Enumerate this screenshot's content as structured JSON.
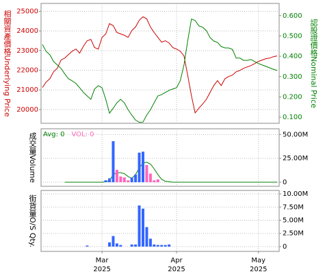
{
  "chart_data": [
    {
      "type": "line",
      "ylabel": "相關資產價格Underlying Price",
      "y2label": "認股證價格Nominal Price",
      "ylim": [
        19300,
        25400
      ],
      "yticks": [
        20000,
        21000,
        22000,
        23000,
        24000,
        25000
      ],
      "y2lim": [
        0.07,
        0.66
      ],
      "y2ticks": [
        {
          "value": 0.1,
          "label": "0.100"
        },
        {
          "value": 0.2,
          "label": "0.200"
        },
        {
          "value": 0.3,
          "label": "0.300"
        },
        {
          "value": 0.4,
          "label": "0.400"
        },
        {
          "value": 0.5,
          "label": "0.500"
        },
        {
          "value": 0.6,
          "label": "0.600"
        }
      ],
      "grid": true,
      "series": [
        {
          "color": "#cc0000",
          "values": [
            21120,
            21400,
            21570,
            21920,
            22100,
            22520,
            22620,
            22800,
            22970,
            23080,
            22870,
            23220,
            23500,
            23570,
            23150,
            23080,
            23670,
            23850,
            24370,
            24270,
            23920,
            23850,
            23780,
            23670,
            24020,
            24200,
            24550,
            24720,
            24620,
            24200,
            23920,
            23670,
            23430,
            23500,
            23390,
            23150,
            23080,
            22970,
            22730,
            21750,
            20700,
            19830,
            20070,
            20280,
            20520,
            20870,
            21220,
            21470,
            21220,
            21570,
            21680,
            21750,
            21920,
            21990,
            22100,
            22170,
            22240,
            22340,
            22450,
            22520,
            22590,
            22620,
            22690,
            22730
          ]
        },
        {
          "color": "#008000",
          "axis": "y2",
          "values": [
            0.458,
            0.424,
            0.407,
            0.374,
            0.357,
            0.34,
            0.313,
            0.289,
            0.279,
            0.266,
            0.245,
            0.222,
            0.205,
            0.188,
            0.239,
            0.255,
            0.245,
            0.188,
            0.12,
            0.144,
            0.171,
            0.188,
            0.171,
            0.137,
            0.11,
            0.086,
            0.075,
            0.076,
            0.11,
            0.137,
            0.171,
            0.205,
            0.211,
            0.222,
            0.232,
            0.239,
            0.245,
            0.279,
            0.357,
            0.475,
            0.583,
            0.576,
            0.549,
            0.543,
            0.526,
            0.492,
            0.475,
            0.468,
            0.448,
            0.441,
            0.441,
            0.434,
            0.391,
            0.391,
            0.38,
            0.38,
            0.384,
            0.374,
            0.364,
            0.357,
            0.35,
            0.343,
            0.336,
            0.33
          ]
        }
      ]
    },
    {
      "type": "bar",
      "ylabel": "成交量Volume",
      "ylim": [
        -4300000,
        56000000
      ],
      "yticks": [
        0,
        {
          "value": 25000000,
          "label": "25.00M"
        },
        {
          "value": 50000000,
          "label": "50.00M"
        }
      ],
      "grid": true,
      "series": [
        {
          "name": "Avg: 0",
          "color": "#008000",
          "type": "line",
          "values": [
            null,
            null,
            null,
            null,
            null,
            null,
            0,
            0,
            0,
            0,
            0,
            0,
            0,
            0,
            0,
            0,
            0,
            500000,
            1500000,
            8000000,
            10000000,
            10000000,
            9000000,
            6000000,
            4000000,
            8000000,
            15000000,
            20000000,
            21000000,
            19000000,
            14000000,
            8000000,
            3000000,
            1000000,
            500000,
            0,
            0,
            0,
            0,
            0,
            0,
            0,
            0,
            0,
            0,
            0,
            0,
            0,
            0,
            0,
            0,
            0,
            0,
            0,
            0,
            0,
            0,
            0,
            0,
            0,
            0,
            0,
            0,
            0
          ]
        },
        {
          "name": "VOL: 0",
          "color": "#ff66bb",
          "values": [
            null,
            null,
            null,
            null,
            null,
            null,
            null,
            null,
            null,
            null,
            null,
            null,
            null,
            null,
            null,
            null,
            null,
            null,
            null,
            null,
            13000000,
            6000000,
            5000000,
            2000000,
            null,
            null,
            null,
            null,
            18000000,
            9000000,
            2000000,
            3000000,
            null,
            null,
            null,
            null,
            null,
            null,
            null,
            null,
            null,
            null,
            null,
            null,
            null,
            null,
            null,
            null,
            null,
            null,
            null,
            null,
            null,
            null,
            null,
            null,
            null,
            null,
            null,
            null,
            null,
            null,
            null,
            null
          ]
        },
        {
          "color": "#3366ff",
          "values": [
            null,
            null,
            null,
            null,
            null,
            null,
            null,
            null,
            null,
            null,
            null,
            null,
            null,
            null,
            null,
            null,
            null,
            2000000,
            4000000,
            43000000,
            null,
            null,
            null,
            null,
            5000000,
            8000000,
            31000000,
            32000000,
            null,
            null,
            null,
            null,
            null,
            null,
            null,
            null,
            null,
            null,
            null,
            null,
            null,
            null,
            null,
            null,
            null,
            null,
            null,
            null,
            null,
            null,
            null,
            null,
            null,
            null,
            null,
            null,
            null,
            null,
            null,
            null,
            null,
            null,
            null,
            null
          ]
        }
      ]
    },
    {
      "type": "bar",
      "ylabel": "街貨量O/S Qty.",
      "ylim": [
        -910000,
        10650000
      ],
      "yticks": [
        0,
        {
          "value": 2500000,
          "label": "2.50M"
        },
        {
          "value": 5000000,
          "label": "5.00M"
        },
        {
          "value": 7500000,
          "label": "7.50M"
        },
        {
          "value": 10000000,
          "label": "10.00M"
        }
      ],
      "grid": true,
      "categories": [
        null,
        null,
        null,
        null,
        null,
        null,
        null,
        null,
        null,
        null,
        null,
        null,
        null,
        null,
        null,
        null,
        "Mar 2025",
        null,
        null,
        null,
        null,
        null,
        null,
        null,
        null,
        null,
        null,
        null,
        null,
        null,
        null,
        null,
        null,
        null,
        null,
        null,
        "Apr 2025",
        null,
        null,
        null,
        null,
        null,
        null,
        null,
        null,
        null,
        null,
        null,
        null,
        null,
        null,
        null,
        null,
        null,
        null,
        null,
        null,
        null,
        "May 2025",
        null,
        null,
        null,
        null,
        null
      ],
      "color": "#3366ff",
      "values": [
        null,
        null,
        null,
        null,
        null,
        null,
        null,
        null,
        null,
        null,
        null,
        null,
        200000,
        null,
        null,
        null,
        null,
        null,
        800000,
        2000000,
        600000,
        300000,
        null,
        null,
        400000,
        400000,
        7800000,
        7200000,
        3700000,
        1500000,
        400000,
        300000,
        300000,
        300000,
        400000,
        null,
        null,
        null,
        null,
        null,
        null,
        null,
        null,
        null,
        null,
        null,
        null,
        null,
        null,
        null,
        null,
        null,
        null,
        null,
        null,
        null,
        null,
        null,
        null,
        null,
        null,
        null,
        null,
        null
      ]
    }
  ]
}
